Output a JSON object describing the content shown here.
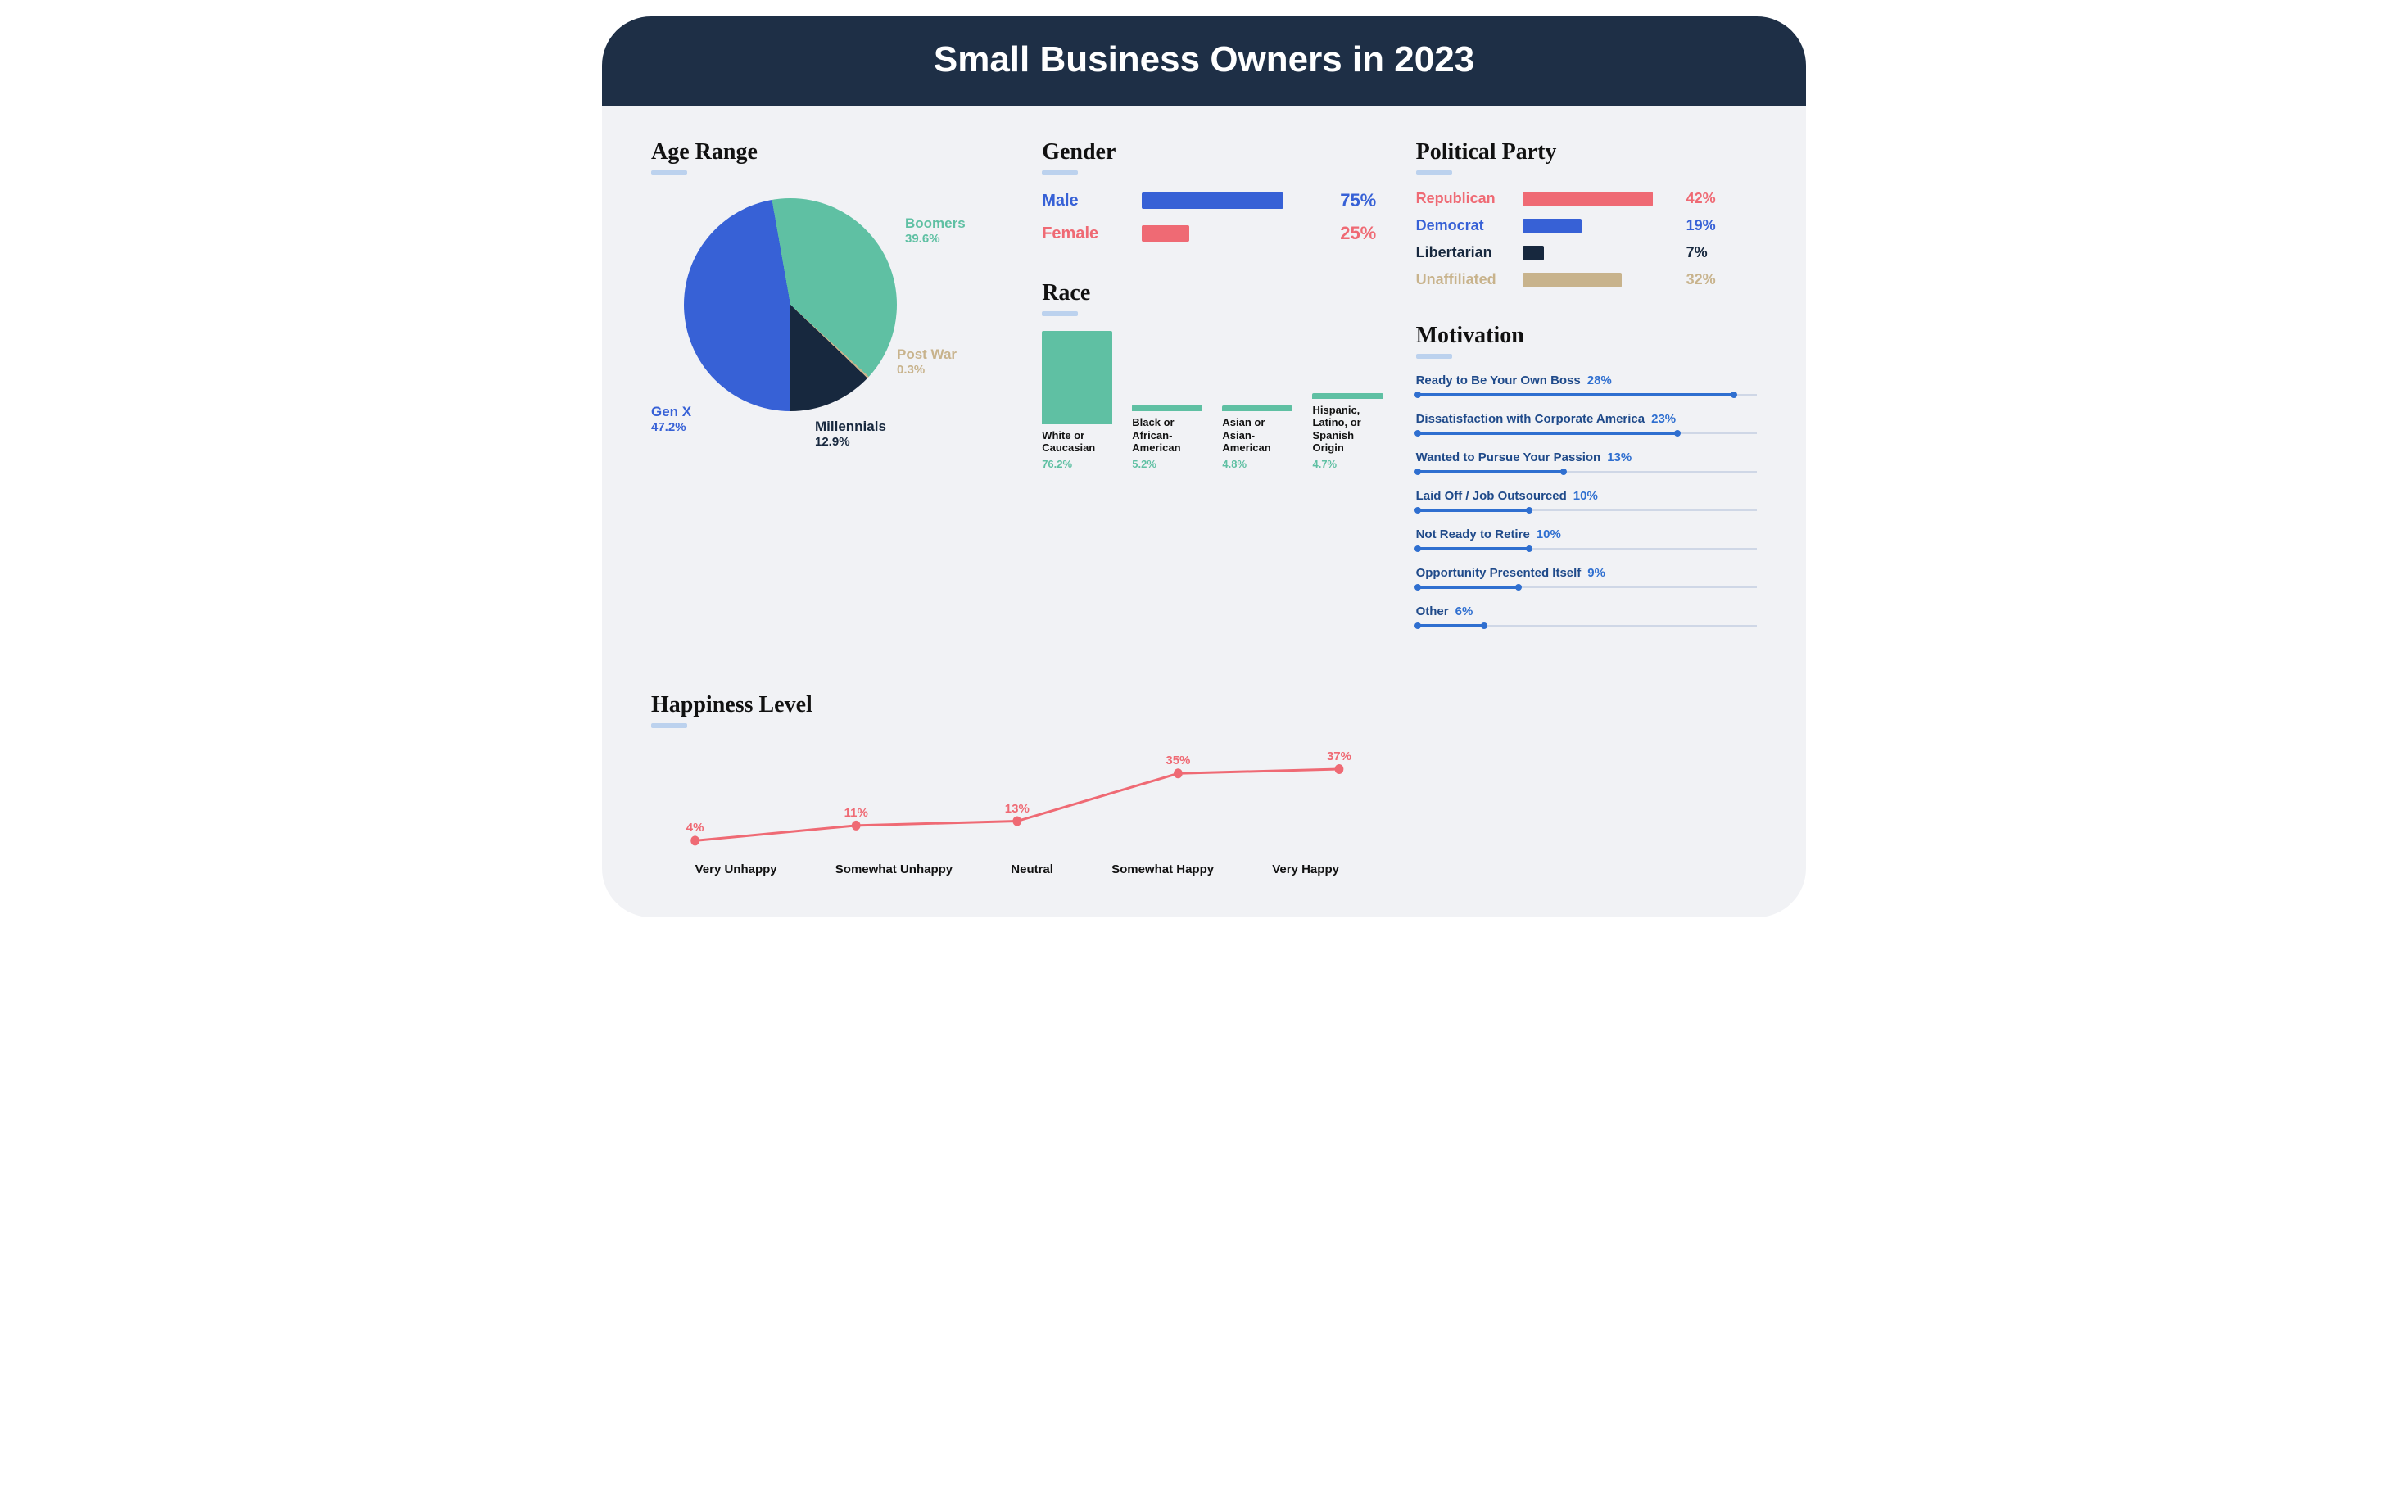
{
  "header": {
    "title": "Small Business Owners in 2023"
  },
  "colors": {
    "header_bg": "#1e2f46",
    "card_bg": "#f1f2f5",
    "underline": "#bcd2ee",
    "blue": "#3761d6",
    "teal": "#5fc0a3",
    "navy": "#17283e",
    "tan": "#c8b38c",
    "coral": "#ef6a74",
    "mot_line": "#2f6fd0",
    "mot_label": "#1f4a8a"
  },
  "age_range": {
    "title": "Age Range",
    "type": "pie",
    "slices": [
      {
        "label": "Gen X",
        "value": 47.2,
        "color": "#3761d6",
        "label_color": "#3761d6"
      },
      {
        "label": "Boomers",
        "value": 39.6,
        "color": "#5fc0a3",
        "label_color": "#5fc0a3"
      },
      {
        "label": "Post War",
        "value": 0.3,
        "color": "#c8b38c",
        "label_color": "#c8b38c"
      },
      {
        "label": "Millennials",
        "value": 12.9,
        "color": "#17283e",
        "label_color": "#17283e"
      }
    ]
  },
  "gender": {
    "title": "Gender",
    "type": "hbar",
    "max": 100,
    "rows": [
      {
        "label": "Male",
        "value": 75,
        "color": "#3761d6"
      },
      {
        "label": "Female",
        "value": 25,
        "color": "#ef6a74"
      }
    ]
  },
  "race": {
    "title": "Race",
    "type": "vbar",
    "bar_color": "#5fc0a3",
    "value_color": "#5fc0a3",
    "max": 80,
    "rows": [
      {
        "label": "White or Caucasian",
        "value": 76.2
      },
      {
        "label": "Black or African-American",
        "value": 5.2
      },
      {
        "label": "Asian or Asian-American",
        "value": 4.8
      },
      {
        "label": "Hispanic, Latino, or Spanish Origin",
        "value": 4.7
      }
    ]
  },
  "political": {
    "title": "Political Party",
    "type": "hbar",
    "max": 50,
    "rows": [
      {
        "label": "Republican",
        "value": 42,
        "color": "#ef6a74"
      },
      {
        "label": "Democrat",
        "value": 19,
        "color": "#3761d6"
      },
      {
        "label": "Libertarian",
        "value": 7,
        "color": "#17283e"
      },
      {
        "label": "Unaffiliated",
        "value": 32,
        "color": "#c8b38c"
      }
    ]
  },
  "motivation": {
    "title": "Motivation",
    "type": "dot-line",
    "max": 30,
    "rows": [
      {
        "label": "Ready to Be Your Own Boss",
        "value": 28
      },
      {
        "label": "Dissatisfaction with Corporate America",
        "value": 23
      },
      {
        "label": "Wanted to Pursue Your Passion",
        "value": 13
      },
      {
        "label": "Laid Off / Job Outsourced",
        "value": 10
      },
      {
        "label": "Not Ready to Retire",
        "value": 10
      },
      {
        "label": "Opportunity Presented Itself",
        "value": 9
      },
      {
        "label": "Other",
        "value": 6
      }
    ]
  },
  "happiness": {
    "title": "Happiness Level",
    "type": "line",
    "line_color": "#ef6a74",
    "ylim": [
      0,
      40
    ],
    "points": [
      {
        "label": "Very Unhappy",
        "value": 4
      },
      {
        "label": "Somewhat Unhappy",
        "value": 11
      },
      {
        "label": "Neutral",
        "value": 13
      },
      {
        "label": "Somewhat Happy",
        "value": 35
      },
      {
        "label": "Very Happy",
        "value": 37
      }
    ]
  }
}
